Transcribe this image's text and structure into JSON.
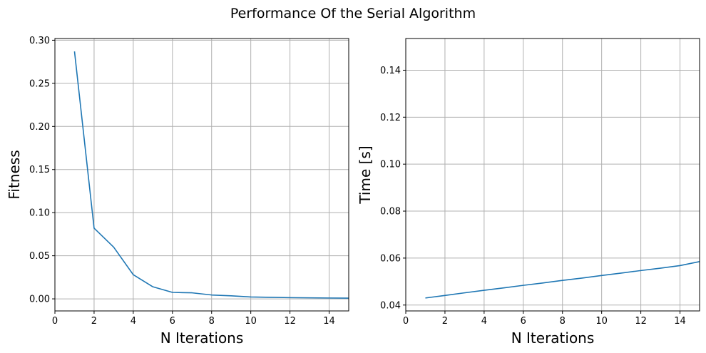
{
  "suptitle": "Performance Of the Serial Algorithm",
  "colors": {
    "series": "#1f77b4",
    "grid": "#b0b0b0",
    "frame": "#000000"
  },
  "chart_data": [
    {
      "type": "line",
      "xlabel": "N Iterations",
      "ylabel": "Fitness",
      "xlim": [
        0,
        15
      ],
      "ylim": [
        -0.014,
        0.302
      ],
      "xticks": [
        0,
        2,
        4,
        6,
        8,
        10,
        12,
        14
      ],
      "yticks": [
        0.0,
        0.05,
        0.1,
        0.15,
        0.2,
        0.25,
        0.3
      ],
      "ytick_labels": [
        "0.00",
        "0.05",
        "0.10",
        "0.15",
        "0.20",
        "0.25",
        "0.30"
      ],
      "grid": true,
      "series": [
        {
          "x": [
            1,
            2,
            3,
            4,
            5,
            6,
            7,
            8,
            9,
            10,
            11,
            12,
            13,
            14,
            15
          ],
          "y": [
            0.287,
            0.082,
            0.06,
            0.028,
            0.014,
            0.0075,
            0.007,
            0.0045,
            0.0035,
            0.0022,
            0.0018,
            0.0014,
            0.0012,
            0.001,
            0.0008
          ]
        }
      ]
    },
    {
      "type": "line",
      "xlabel": "N Iterations",
      "ylabel": "Time [s]",
      "xlim": [
        0,
        15
      ],
      "ylim": [
        0.0375,
        0.1535
      ],
      "xticks": [
        0,
        2,
        4,
        6,
        8,
        10,
        12,
        14
      ],
      "yticks": [
        0.04,
        0.06,
        0.08,
        0.1,
        0.12,
        0.14
      ],
      "ytick_labels": [
        "0.04",
        "0.06",
        "0.08",
        "0.10",
        "0.12",
        "0.14"
      ],
      "grid": true,
      "series": [
        {
          "x": [
            1,
            2,
            3,
            4,
            5,
            6,
            7,
            8,
            9,
            10,
            11,
            12,
            13,
            14,
            15
          ],
          "y": [
            0.043,
            0.0441,
            0.0452,
            0.0463,
            0.0473,
            0.0484,
            0.0494,
            0.0505,
            0.0515,
            0.0526,
            0.0536,
            0.0547,
            0.0557,
            0.0568,
            0.0585
          ]
        }
      ]
    }
  ]
}
